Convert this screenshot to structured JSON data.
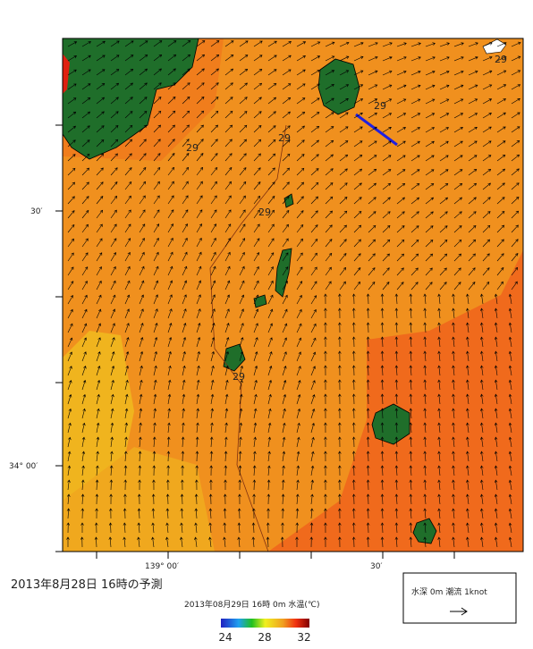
{
  "map": {
    "lat_labels": [
      "30′",
      "34° 00′"
    ],
    "lon_labels": [
      "139° 00′",
      "30′"
    ],
    "contour_labels": [
      "29",
      "29",
      "29",
      "29",
      "29",
      "29"
    ]
  },
  "footer": {
    "title": "2013年8月28日  16時の予測",
    "subtitle": "2013年08月29日 16時 0m 水温(℃)"
  },
  "colorbar": {
    "ticks": [
      24,
      28,
      32
    ]
  },
  "legend": {
    "label": "水深 0m 潮流 1knot"
  }
}
